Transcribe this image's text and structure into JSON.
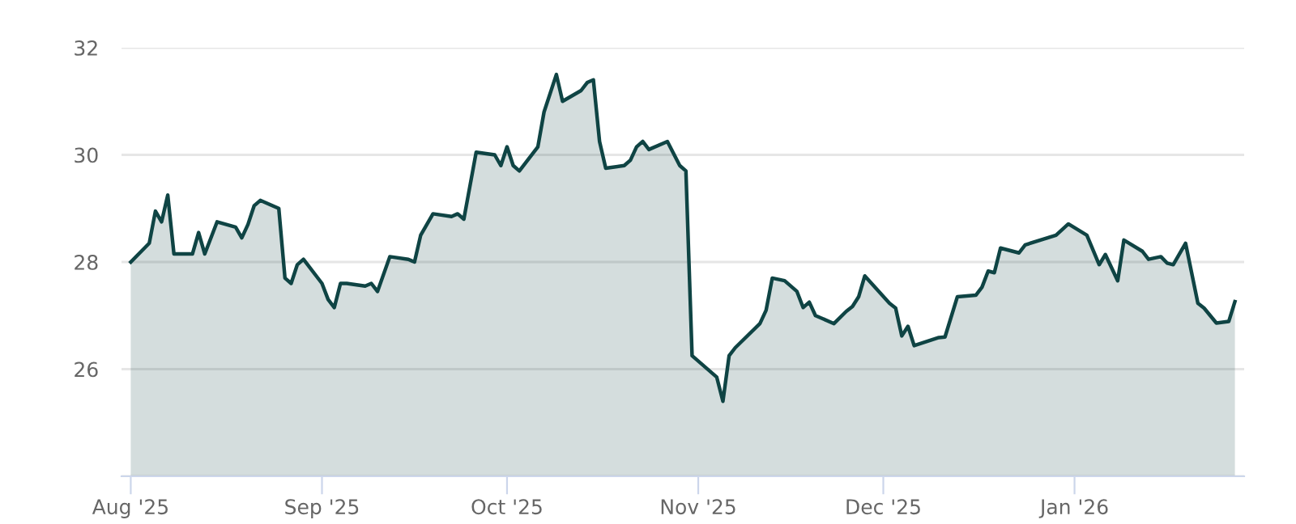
{
  "chart_data": {
    "type": "area",
    "x": [
      "2025-08-01",
      "2025-08-04",
      "2025-08-05",
      "2025-08-06",
      "2025-08-07",
      "2025-08-08",
      "2025-08-11",
      "2025-08-12",
      "2025-08-13",
      "2025-08-15",
      "2025-08-18",
      "2025-08-19",
      "2025-08-20",
      "2025-08-21",
      "2025-08-22",
      "2025-08-25",
      "2025-08-26",
      "2025-08-27",
      "2025-08-28",
      "2025-08-29",
      "2025-09-01",
      "2025-09-02",
      "2025-09-03",
      "2025-09-04",
      "2025-09-05",
      "2025-09-08",
      "2025-09-09",
      "2025-09-10",
      "2025-09-12",
      "2025-09-15",
      "2025-09-16",
      "2025-09-17",
      "2025-09-18",
      "2025-09-19",
      "2025-09-22",
      "2025-09-23",
      "2025-09-24",
      "2025-09-26",
      "2025-09-29",
      "2025-09-30",
      "2025-10-01",
      "2025-10-02",
      "2025-10-03",
      "2025-10-06",
      "2025-10-07",
      "2025-10-09",
      "2025-10-10",
      "2025-10-13",
      "2025-10-14",
      "2025-10-15",
      "2025-10-16",
      "2025-10-17",
      "2025-10-20",
      "2025-10-21",
      "2025-10-22",
      "2025-10-23",
      "2025-10-24",
      "2025-10-27",
      "2025-10-29",
      "2025-10-30",
      "2025-10-31",
      "2025-11-04",
      "2025-11-05",
      "2025-11-06",
      "2025-11-07",
      "2025-11-11",
      "2025-11-12",
      "2025-11-13",
      "2025-11-15",
      "2025-11-17",
      "2025-11-18",
      "2025-11-19",
      "2025-11-20",
      "2025-11-23",
      "2025-11-25",
      "2025-11-26",
      "2025-11-27",
      "2025-11-28",
      "2025-12-02",
      "2025-12-03",
      "2025-12-04",
      "2025-12-05",
      "2025-12-06",
      "2025-12-10",
      "2025-12-11",
      "2025-12-13",
      "2025-12-16",
      "2025-12-17",
      "2025-12-18",
      "2025-12-19",
      "2025-12-20",
      "2025-12-23",
      "2025-12-24",
      "2025-12-29",
      "2025-12-31",
      "2026-01-03",
      "2026-01-05",
      "2026-01-06",
      "2026-01-08",
      "2026-01-09",
      "2026-01-12",
      "2026-01-13",
      "2026-01-15",
      "2026-01-16",
      "2026-01-17",
      "2026-01-19",
      "2026-01-21",
      "2026-01-22",
      "2026-01-24",
      "2026-01-26",
      "2026-01-27"
    ],
    "series": [
      {
        "color": "#0f4444",
        "values": [
          28.0,
          28.35,
          28.95,
          28.75,
          29.25,
          28.15,
          28.15,
          28.55,
          28.15,
          28.75,
          28.65,
          28.45,
          28.7,
          29.05,
          29.15,
          29.0,
          27.7,
          27.6,
          27.95,
          28.05,
          27.6,
          27.3,
          27.15,
          27.6,
          27.6,
          27.55,
          27.6,
          27.45,
          28.1,
          28.05,
          28.0,
          28.5,
          28.7,
          28.9,
          28.85,
          28.9,
          28.8,
          30.05,
          30.0,
          29.8,
          30.15,
          29.8,
          29.7,
          30.15,
          30.8,
          31.5,
          31.0,
          31.2,
          31.35,
          31.4,
          30.25,
          29.75,
          29.8,
          29.9,
          30.15,
          30.25,
          30.1,
          30.25,
          29.8,
          29.7,
          26.25,
          25.85,
          25.4,
          26.25,
          26.4,
          26.85,
          27.1,
          27.7,
          27.65,
          27.45,
          27.15,
          27.25,
          27.0,
          26.85,
          27.08,
          27.17,
          27.35,
          27.74,
          27.23,
          27.14,
          26.62,
          26.8,
          26.44,
          26.59,
          26.6,
          27.35,
          27.38,
          27.53,
          27.83,
          27.8,
          28.26,
          28.17,
          28.32,
          28.5,
          28.71,
          28.5,
          27.95,
          28.14,
          27.65,
          28.41,
          28.2,
          28.05,
          28.1,
          27.98,
          27.95,
          28.35,
          27.23,
          27.14,
          26.86,
          26.89,
          27.26
        ]
      }
    ],
    "xlim": [
      "2025-07-30T12:00",
      "2026-01-28T12:00"
    ],
    "xticks": [
      {
        "value": "2025-08-01",
        "label": "Aug '25"
      },
      {
        "value": "2025-09-01",
        "label": "Sep '25"
      },
      {
        "value": "2025-10-01",
        "label": "Oct '25"
      },
      {
        "value": "2025-11-01",
        "label": "Nov '25"
      },
      {
        "value": "2025-12-01",
        "label": "Dec '25"
      },
      {
        "value": "2026-01-01",
        "label": "Jan '26"
      }
    ],
    "ylim": [
      24,
      32
    ],
    "yticks": [
      {
        "value": 24,
        "label": null
      },
      26,
      28,
      30,
      32
    ],
    "grid": "y",
    "legend": false
  }
}
